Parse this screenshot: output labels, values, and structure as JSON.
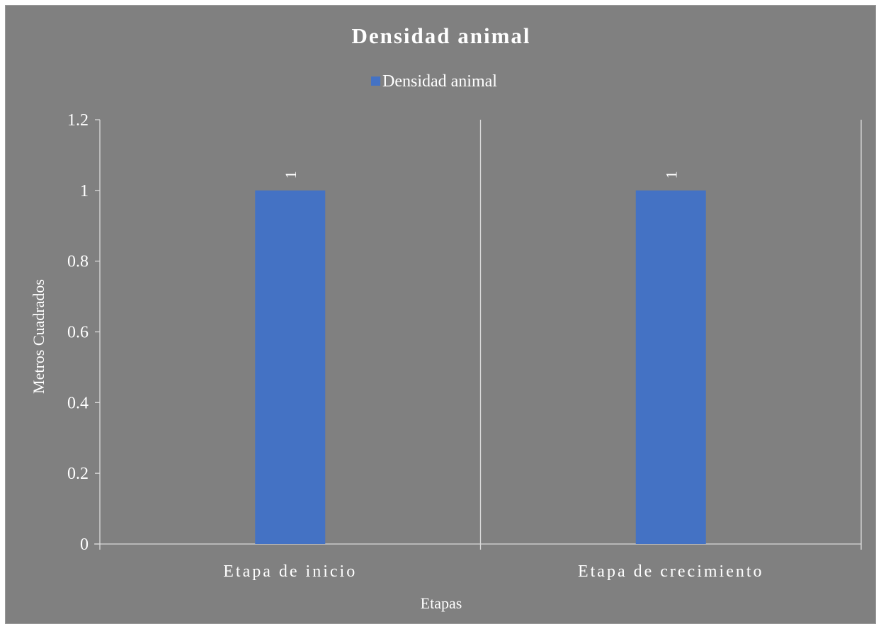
{
  "colors": {
    "background": "#808080",
    "bar": "#4472C4",
    "text": "#ffffff",
    "axis": "#d9d9d9"
  },
  "chart_data": {
    "type": "bar",
    "title": "Densidad animal",
    "categories": [
      "Etapa de inicio",
      "Etapa de crecimiento"
    ],
    "series": [
      {
        "name": "Densidad animal",
        "values": [
          1,
          1
        ],
        "color": "#4472C4"
      }
    ],
    "xlabel": "Etapas",
    "ylabel": "Metros Cuadrados",
    "ylim": [
      0,
      1.2
    ],
    "yticks": [
      "0",
      "0.2",
      "0.4",
      "0.6",
      "0.8",
      "1",
      "1.2"
    ],
    "data_labels": [
      "1",
      "1"
    ],
    "legend_position": "top",
    "grid": false
  }
}
